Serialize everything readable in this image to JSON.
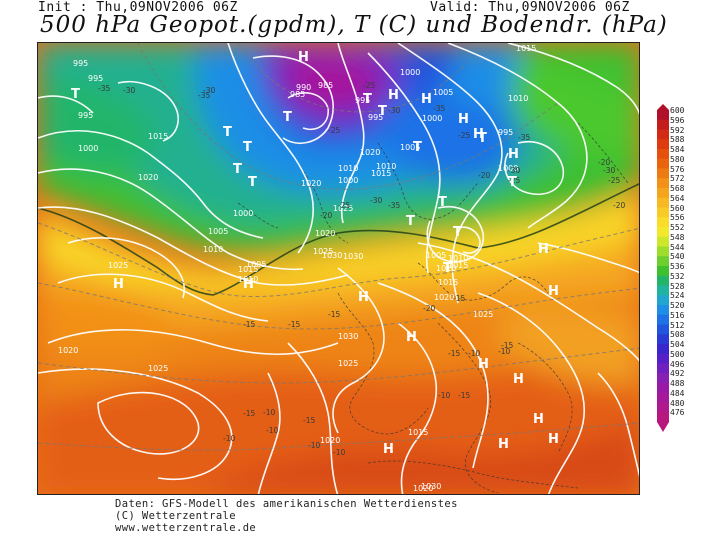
{
  "header": {
    "init": "Init : Thu,09NOV2006 06Z",
    "valid": "Valid: Thu,09NOV2006 06Z",
    "title": "500 hPa Geopot.(gpdm), T (C) und Bodendr. (hPa)"
  },
  "legend": {
    "labels": [
      "600",
      "596",
      "592",
      "588",
      "584",
      "580",
      "576",
      "572",
      "568",
      "564",
      "560",
      "556",
      "552",
      "548",
      "544",
      "540",
      "536",
      "532",
      "528",
      "524",
      "520",
      "516",
      "512",
      "508",
      "504",
      "500",
      "496",
      "492",
      "488",
      "484",
      "480",
      "476"
    ],
    "colors": [
      "#b0102a",
      "#c41d1d",
      "#d22a14",
      "#de3b10",
      "#e6500e",
      "#ea640e",
      "#ee7a12",
      "#f29018",
      "#f5a41e",
      "#f7b823",
      "#f9cb27",
      "#fadc2a",
      "#f3e82c",
      "#cde82c",
      "#9fdd2c",
      "#6ccf2e",
      "#3ec12e",
      "#22b56a",
      "#1fb3a0",
      "#20a6cf",
      "#1f8ee6",
      "#1f72e6",
      "#2255dd",
      "#2a3bd4",
      "#3a27cc",
      "#5520c8",
      "#7020c0",
      "#8820b4",
      "#9a1aa8",
      "#a6189a",
      "#b0188c",
      "#b8187e"
    ]
  },
  "map": {
    "pressure_labels": [
      {
        "t": "995"
      },
      {
        "t": "995"
      },
      {
        "t": "995"
      },
      {
        "t": "1000"
      },
      {
        "t": "1015"
      },
      {
        "t": "1020"
      },
      {
        "t": "1000"
      },
      {
        "t": "1005"
      },
      {
        "t": "1010"
      },
      {
        "t": "1025"
      },
      {
        "t": "1005"
      },
      {
        "t": "1010"
      },
      {
        "t": "1015"
      },
      {
        "t": "1020"
      },
      {
        "t": "1025"
      },
      {
        "t": "1030"
      },
      {
        "t": "1030"
      },
      {
        "t": "1025"
      },
      {
        "t": "1020"
      },
      {
        "t": "1010"
      },
      {
        "t": "1000"
      },
      {
        "t": "1020"
      },
      {
        "t": "1015"
      },
      {
        "t": "1010"
      },
      {
        "t": "1005"
      },
      {
        "t": "1000"
      },
      {
        "t": "995"
      },
      {
        "t": "990"
      },
      {
        "t": "985"
      },
      {
        "t": "985"
      },
      {
        "t": "995"
      },
      {
        "t": "1000"
      },
      {
        "t": "1005"
      },
      {
        "t": "1010"
      },
      {
        "t": "1015"
      },
      {
        "t": "1015"
      },
      {
        "t": "1010"
      },
      {
        "t": "995"
      },
      {
        "t": "1000"
      },
      {
        "t": "1005"
      },
      {
        "t": "1010"
      },
      {
        "t": "1015"
      },
      {
        "t": "1020"
      },
      {
        "t": "1025"
      },
      {
        "t": "1030"
      },
      {
        "t": "1025"
      },
      {
        "t": "1020"
      },
      {
        "t": "1015"
      },
      {
        "t": "1020"
      },
      {
        "t": "1030"
      },
      {
        "t": "1020"
      },
      {
        "t": "1025"
      }
    ],
    "temp_labels": [
      {
        "t": "-35"
      },
      {
        "t": "-30"
      },
      {
        "t": "-35"
      },
      {
        "t": "-30"
      },
      {
        "t": "-25"
      },
      {
        "t": "-25"
      },
      {
        "t": "-30"
      },
      {
        "t": "-35"
      },
      {
        "t": "-25"
      },
      {
        "t": "-20"
      },
      {
        "t": "-25"
      },
      {
        "t": "-30"
      },
      {
        "t": "-35"
      },
      {
        "t": "-30"
      },
      {
        "t": "-25"
      },
      {
        "t": "-20"
      },
      {
        "t": "-35"
      },
      {
        "t": "-30"
      },
      {
        "t": "-25"
      },
      {
        "t": "-20"
      },
      {
        "t": "-15"
      },
      {
        "t": "-15"
      },
      {
        "t": "-15"
      },
      {
        "t": "-20"
      },
      {
        "t": "-15"
      },
      {
        "t": "-10"
      },
      {
        "t": "-10"
      },
      {
        "t": "-10"
      },
      {
        "t": "-15"
      },
      {
        "t": "-10"
      },
      {
        "t": "-15"
      },
      {
        "t": "-15"
      },
      {
        "t": "-10"
      },
      {
        "t": "-10"
      },
      {
        "t": "-10"
      },
      {
        "t": "-10"
      },
      {
        "t": "-15"
      },
      {
        "t": "-15"
      },
      {
        "t": "-20"
      },
      {
        "t": "-20"
      }
    ],
    "systems": [
      {
        "t": "T"
      },
      {
        "t": "T"
      },
      {
        "t": "T"
      },
      {
        "t": "T"
      },
      {
        "t": "T"
      },
      {
        "t": "T"
      },
      {
        "t": "T"
      },
      {
        "t": "T"
      },
      {
        "t": "T"
      },
      {
        "t": "T"
      },
      {
        "t": "T"
      },
      {
        "t": "T"
      },
      {
        "t": "T"
      },
      {
        "t": "T"
      },
      {
        "t": "T"
      },
      {
        "t": "H"
      },
      {
        "t": "H"
      },
      {
        "t": "H"
      },
      {
        "t": "H"
      },
      {
        "t": "H"
      },
      {
        "t": "H"
      },
      {
        "t": "H"
      },
      {
        "t": "H"
      },
      {
        "t": "H"
      },
      {
        "t": "H"
      },
      {
        "t": "H"
      },
      {
        "t": "H"
      },
      {
        "t": "H"
      },
      {
        "t": "H"
      },
      {
        "t": "H"
      },
      {
        "t": "H"
      },
      {
        "t": "H"
      },
      {
        "t": "H"
      }
    ]
  },
  "footer": {
    "line1": "Daten: GFS-Modell des amerikanischen Wetterdienstes",
    "line2": "(C) Wetterzentrale",
    "line3": "www.wetterzentrale.de"
  }
}
